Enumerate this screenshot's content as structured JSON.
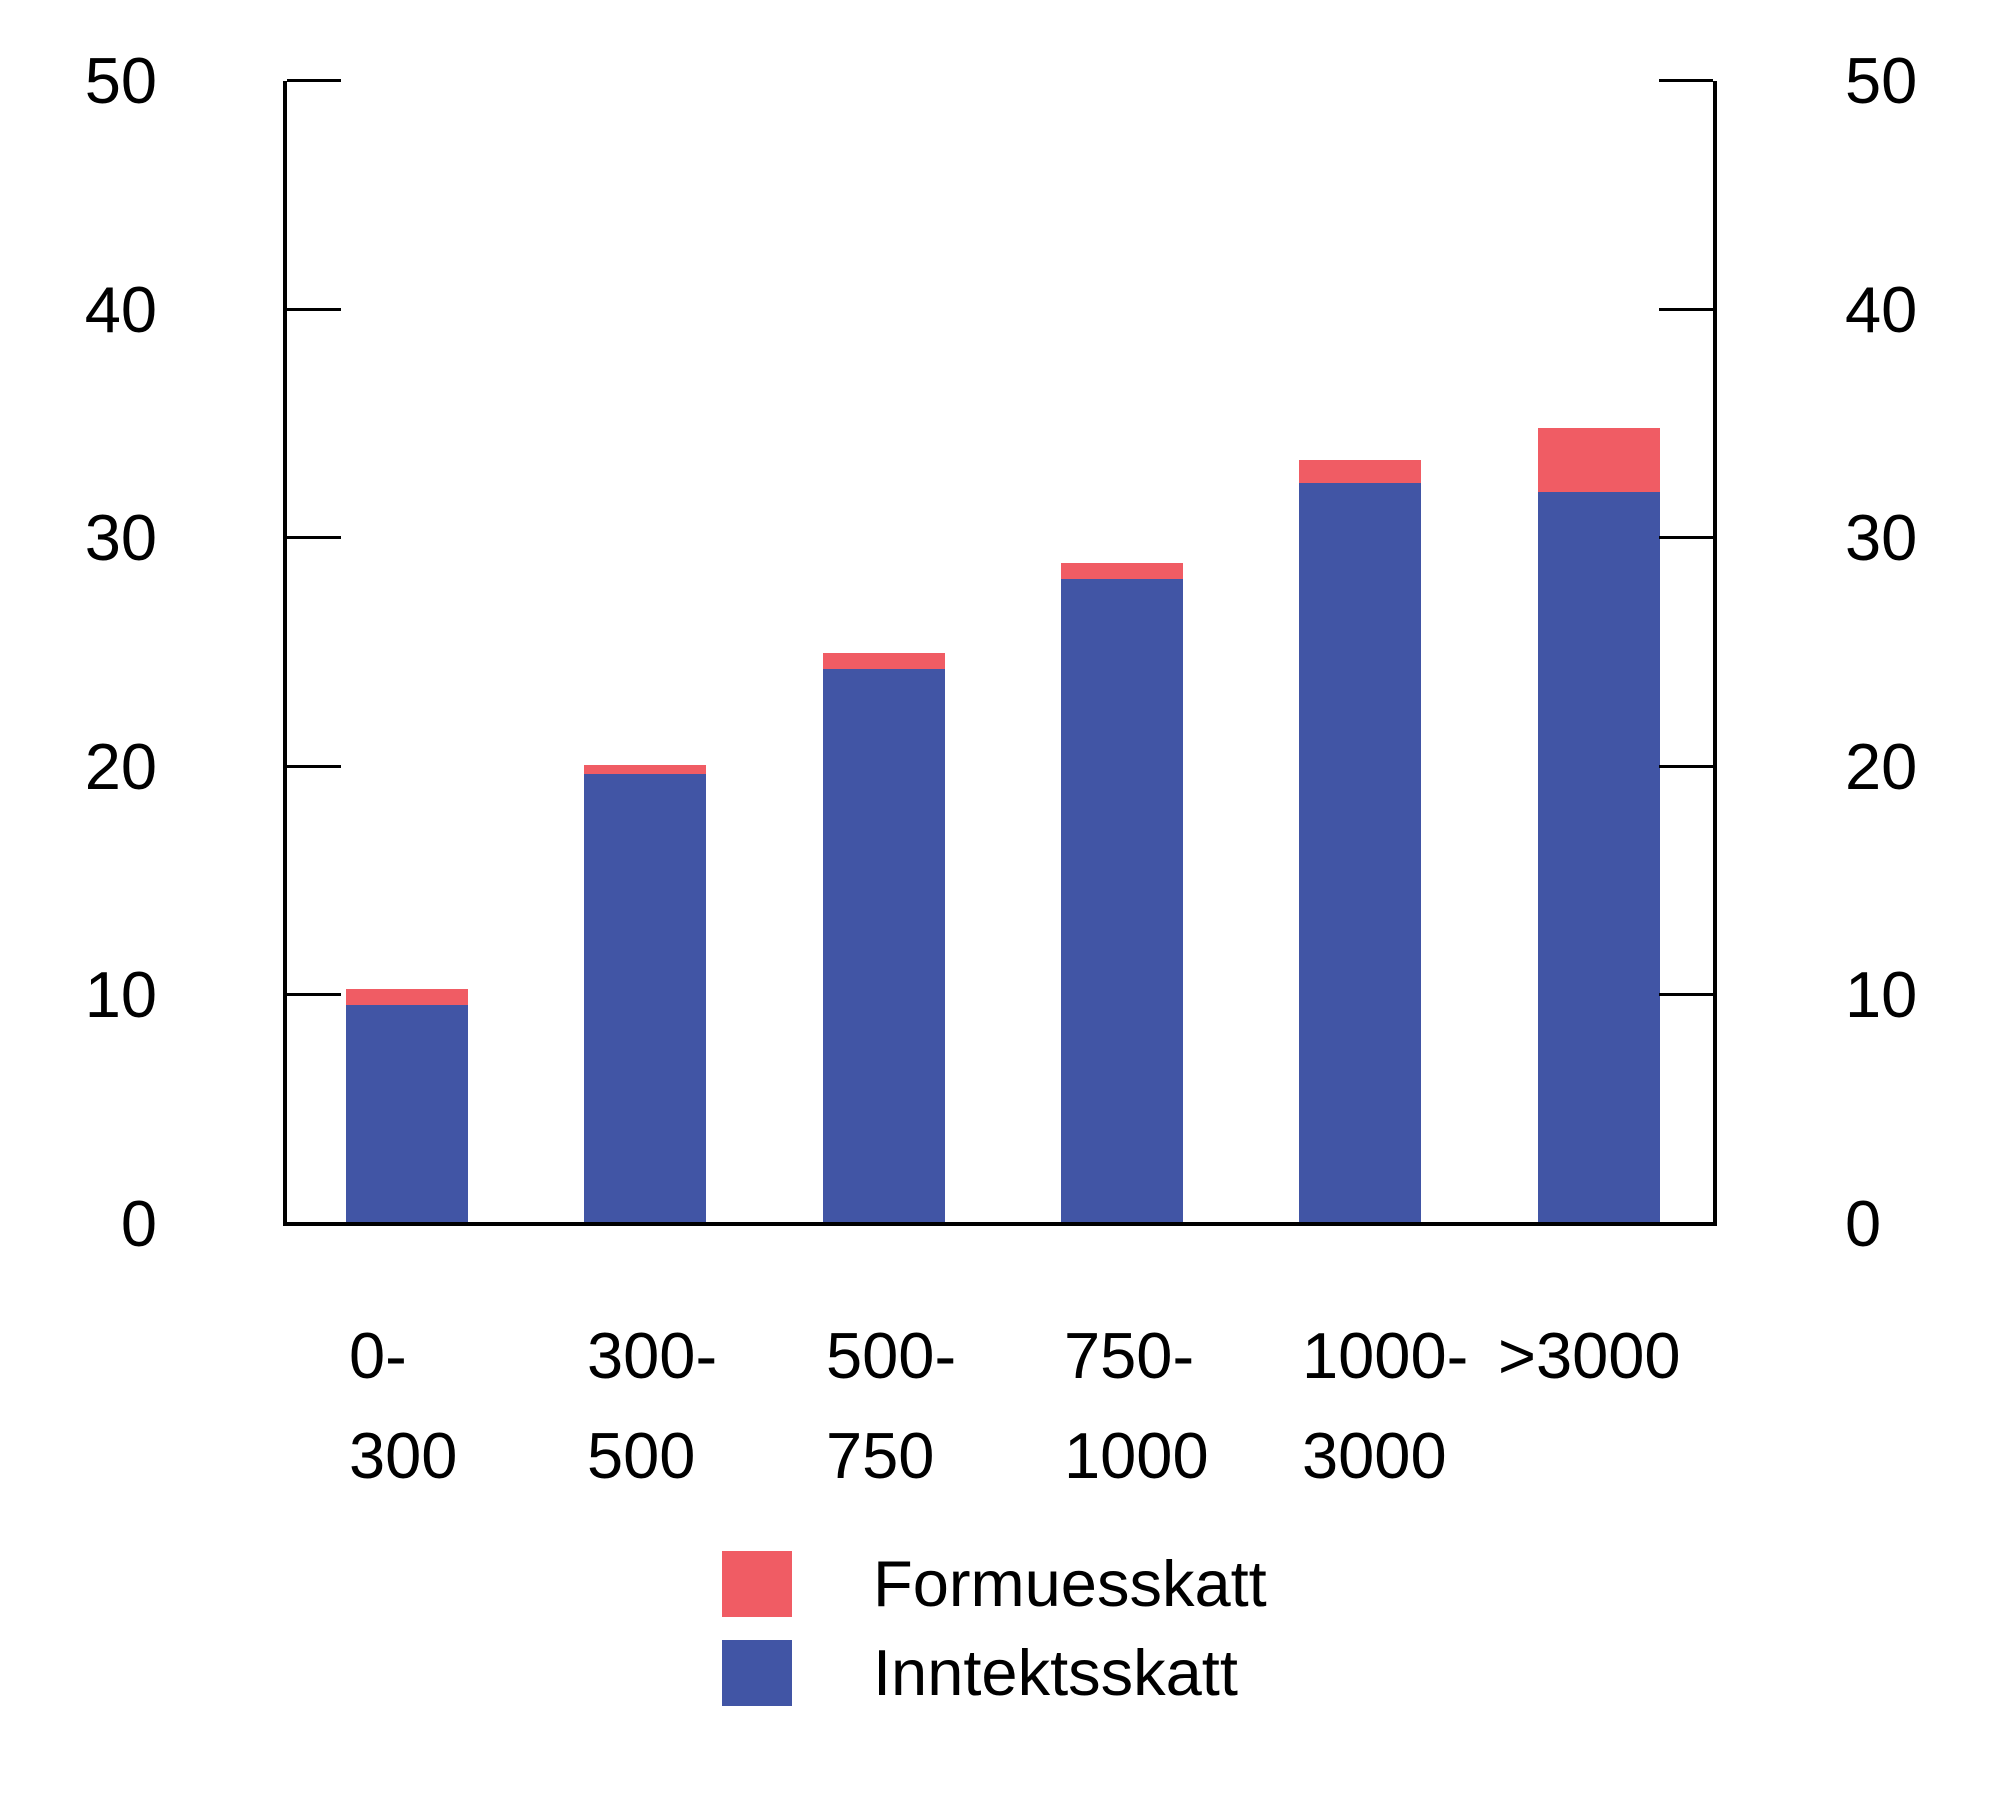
{
  "figure": {
    "background_color": "#FFFFFF",
    "axis_color": "#000000",
    "text_color": "#000000"
  },
  "legend": {
    "position": "bottom",
    "items": [
      {
        "label": "Formuesskatt",
        "color": "#F05C64"
      },
      {
        "label": "Inntektsskatt",
        "color": "#4155A5"
      }
    ]
  },
  "chart_data": {
    "type": "bar",
    "stacked": true,
    "title": "",
    "xlabel": "",
    "ylabel": "",
    "categories": [
      "0-300",
      "300-500",
      "500-750",
      "750-1000",
      "1000-3000",
      ">3000"
    ],
    "category_label_lines": [
      [
        "0-",
        "300"
      ],
      [
        "300-",
        "500"
      ],
      [
        "500-",
        "750"
      ],
      [
        "750-",
        "1000"
      ],
      [
        "1000-",
        "3000"
      ],
      [
        ">3000"
      ]
    ],
    "series": [
      {
        "name": "Inntektsskatt",
        "color": "#4155A5",
        "values": [
          9.6,
          19.7,
          24.3,
          28.2,
          32.4,
          32.0
        ]
      },
      {
        "name": "Formuesskatt",
        "color": "#F05C64",
        "values": [
          0.7,
          0.4,
          0.7,
          0.7,
          1.0,
          2.8
        ]
      }
    ],
    "totals": [
      10.3,
      20.1,
      25.0,
      28.9,
      33.4,
      34.8
    ],
    "ylim": [
      0,
      50
    ],
    "yticks": [
      0,
      10,
      20,
      30,
      40,
      50
    ],
    "ytick_labels_left": [
      "0",
      "10",
      "20",
      "30",
      "40",
      "50"
    ],
    "ytick_labels_right": [
      "0",
      "10",
      "20",
      "30",
      "40",
      "50"
    ],
    "grid": false,
    "dual_y_axis": true,
    "legend_position": "bottom"
  }
}
